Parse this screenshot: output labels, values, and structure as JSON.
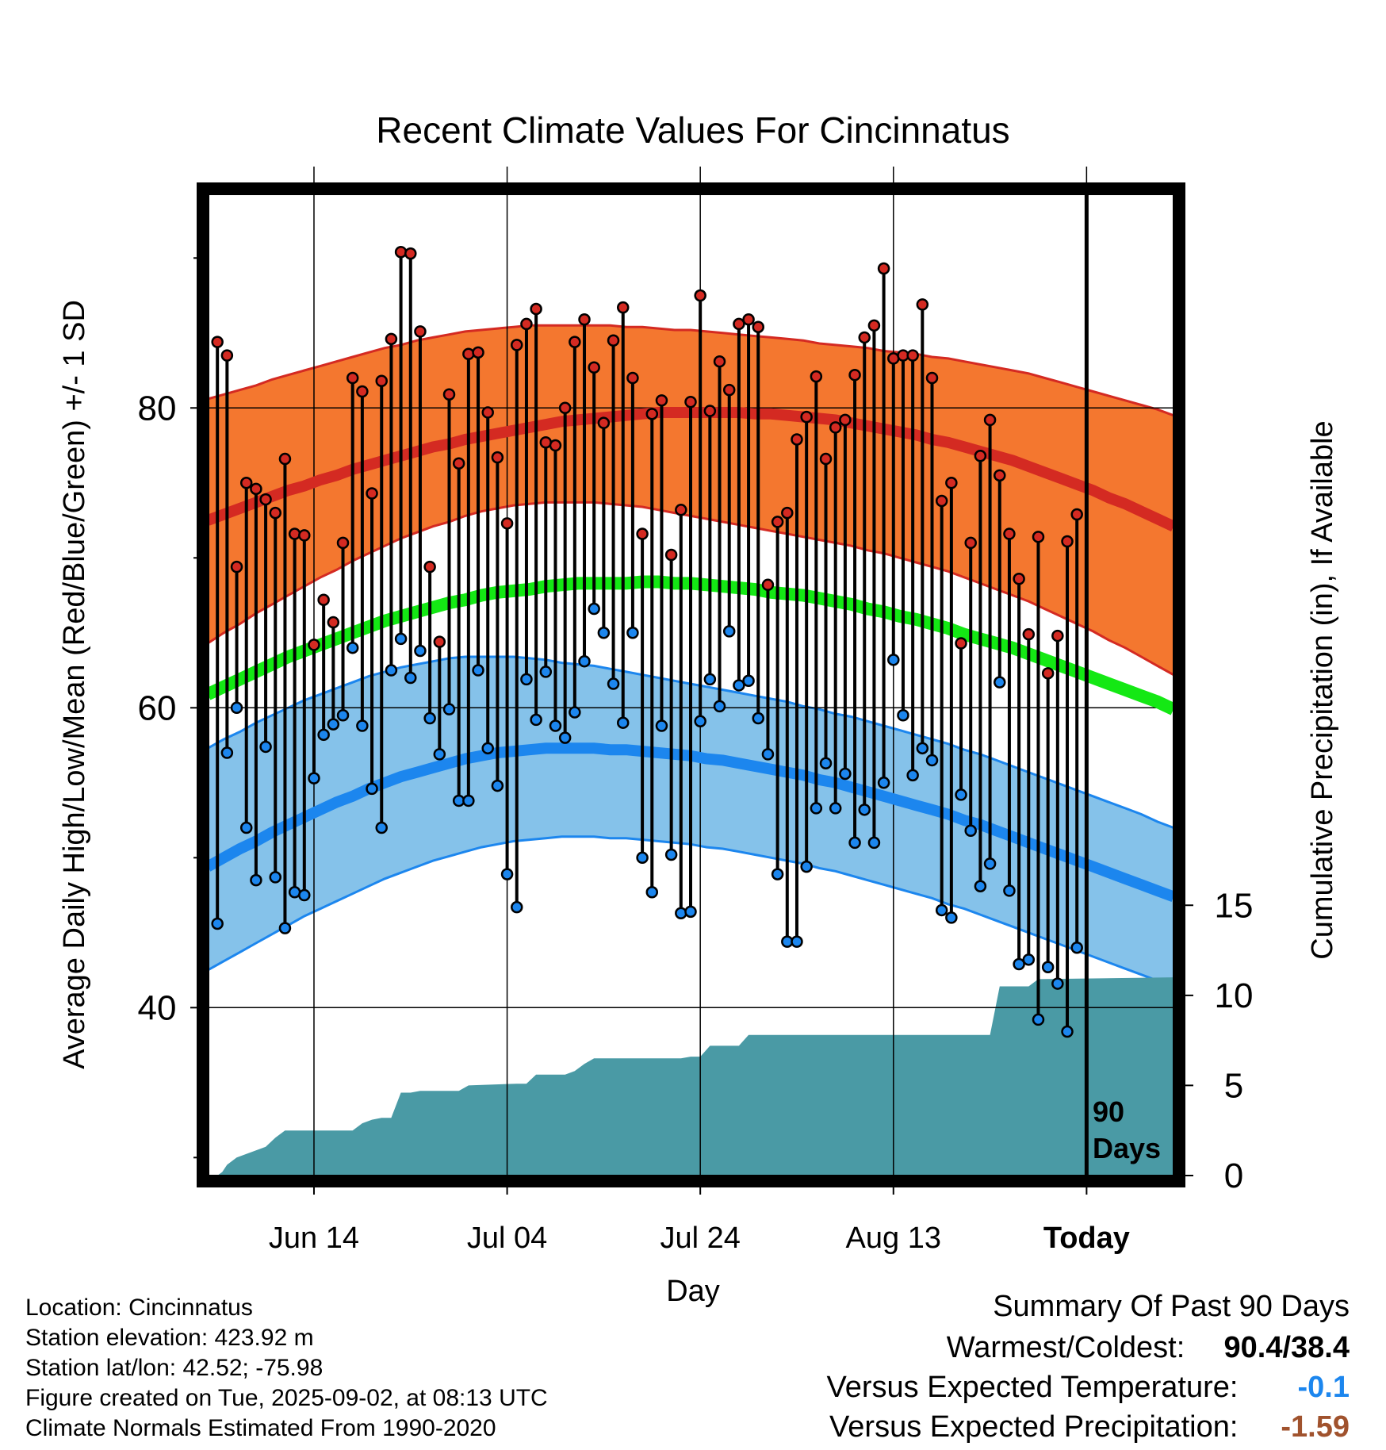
{
  "chart_data": {
    "type": "line",
    "title": "Recent Climate Values For Cincinnatus",
    "xlabel": "Day",
    "ylabel_left": "Average Daily High/Low/Mean (Red/Blue/Green) +/- 1 SD",
    "ylabel_right": "Cumulative Precipitation (in), If Available",
    "x_tick_labels": [
      "Jun 14",
      "Jul 04",
      "Jul 24",
      "Aug 13",
      "Today"
    ],
    "x_tick_days": [
      10,
      30,
      50,
      70,
      90
    ],
    "x_range_days": [
      -1,
      99
    ],
    "y_left_ticks": [
      40,
      60,
      80
    ],
    "y_left_range": [
      28.8,
      94.3
    ],
    "y_right_ticks": [
      0,
      5,
      10,
      15
    ],
    "y_right_range": [
      0,
      54.5
    ],
    "grid": true,
    "today_marker_label": [
      "90",
      "Days"
    ],
    "normals": {
      "mean_high": [
        72.5,
        72.9,
        73.3,
        73.7,
        74.1,
        74.5,
        74.8,
        75.2,
        75.5,
        75.9,
        76.2,
        76.5,
        76.8,
        77.1,
        77.4,
        77.6,
        77.9,
        78.1,
        78.3,
        78.5,
        78.7,
        78.9,
        79.1,
        79.2,
        79.3,
        79.4,
        79.5,
        79.6,
        79.7,
        79.7,
        79.7,
        79.7,
        79.7,
        79.7,
        79.6,
        79.6,
        79.5,
        79.4,
        79.3,
        79.2,
        79.0,
        78.8,
        78.6,
        78.4,
        78.2,
        77.9,
        77.7,
        77.4,
        77.1,
        76.8,
        76.5,
        76.1,
        75.7,
        75.3,
        74.9,
        74.5,
        74.0,
        73.6,
        73.1,
        72.6,
        72.1
      ],
      "high_sd_upper": [
        80.6,
        80.9,
        81.2,
        81.5,
        81.9,
        82.2,
        82.5,
        82.8,
        83.1,
        83.4,
        83.7,
        84.0,
        84.2,
        84.5,
        84.7,
        84.9,
        85.1,
        85.2,
        85.3,
        85.4,
        85.5,
        85.5,
        85.5,
        85.5,
        85.5,
        85.5,
        85.4,
        85.4,
        85.3,
        85.2,
        85.2,
        85.1,
        85.0,
        84.9,
        84.8,
        84.7,
        84.6,
        84.5,
        84.3,
        84.2,
        84.1,
        84.0,
        83.8,
        83.7,
        83.6,
        83.4,
        83.3,
        83.1,
        82.9,
        82.7,
        82.5,
        82.3,
        82.0,
        81.7,
        81.4,
        81.1,
        80.8,
        80.5,
        80.2,
        79.9,
        79.5
      ],
      "high_sd_lower": [
        64.3,
        65.0,
        65.6,
        66.3,
        66.9,
        67.5,
        68.1,
        68.7,
        69.2,
        69.8,
        70.3,
        70.8,
        71.3,
        71.7,
        72.1,
        72.4,
        72.8,
        73.1,
        73.3,
        73.5,
        73.6,
        73.7,
        73.7,
        73.7,
        73.7,
        73.6,
        73.5,
        73.4,
        73.2,
        73.0,
        72.8,
        72.6,
        72.4,
        72.2,
        72.0,
        71.8,
        71.6,
        71.4,
        71.2,
        71.0,
        70.8,
        70.5,
        70.3,
        70.0,
        69.7,
        69.4,
        69.1,
        68.7,
        68.3,
        67.9,
        67.5,
        67.1,
        66.6,
        66.1,
        65.6,
        65.1,
        64.5,
        64.0,
        63.4,
        62.8,
        62.2
      ],
      "mean_low": [
        49.4,
        50.0,
        50.6,
        51.1,
        51.7,
        52.2,
        52.7,
        53.2,
        53.7,
        54.1,
        54.6,
        55.0,
        55.4,
        55.7,
        56.0,
        56.3,
        56.6,
        56.8,
        57.0,
        57.1,
        57.2,
        57.3,
        57.3,
        57.3,
        57.3,
        57.2,
        57.2,
        57.1,
        57.0,
        56.9,
        56.8,
        56.6,
        56.5,
        56.3,
        56.1,
        55.9,
        55.7,
        55.5,
        55.2,
        55.0,
        54.7,
        54.4,
        54.1,
        53.8,
        53.5,
        53.2,
        52.9,
        52.5,
        52.2,
        51.8,
        51.4,
        51.0,
        50.6,
        50.2,
        49.8,
        49.4,
        49.0,
        48.6,
        48.2,
        47.8,
        47.4
      ],
      "low_sd_upper": [
        57.3,
        57.9,
        58.4,
        59.0,
        59.5,
        60.0,
        60.5,
        60.9,
        61.3,
        61.7,
        62.1,
        62.4,
        62.7,
        62.9,
        63.1,
        63.3,
        63.4,
        63.4,
        63.4,
        63.4,
        63.3,
        63.2,
        63.0,
        62.9,
        62.8,
        62.6,
        62.4,
        62.2,
        62.0,
        61.8,
        61.6,
        61.4,
        61.2,
        61.0,
        60.8,
        60.6,
        60.4,
        60.1,
        59.9,
        59.6,
        59.4,
        59.1,
        58.8,
        58.5,
        58.2,
        57.9,
        57.6,
        57.2,
        56.9,
        56.5,
        56.1,
        55.7,
        55.3,
        54.9,
        54.5,
        54.1,
        53.7,
        53.3,
        52.9,
        52.4,
        52.0
      ],
      "low_sd_lower": [
        42.5,
        43.1,
        43.7,
        44.3,
        44.9,
        45.5,
        46.1,
        46.6,
        47.1,
        47.6,
        48.1,
        48.6,
        49.0,
        49.4,
        49.8,
        50.1,
        50.4,
        50.7,
        50.9,
        51.1,
        51.2,
        51.3,
        51.4,
        51.4,
        51.4,
        51.3,
        51.3,
        51.2,
        51.1,
        51.0,
        50.9,
        50.7,
        50.6,
        50.4,
        50.2,
        50.0,
        49.8,
        49.6,
        49.3,
        49.1,
        48.8,
        48.5,
        48.2,
        47.9,
        47.6,
        47.3,
        46.9,
        46.6,
        46.2,
        45.8,
        45.4,
        45.0,
        44.6,
        44.2,
        43.8,
        43.4,
        43.0,
        42.6,
        42.2,
        41.8,
        41.4
      ],
      "mean_avg": [
        60.9,
        61.4,
        61.9,
        62.4,
        62.9,
        63.4,
        63.8,
        64.2,
        64.6,
        65.0,
        65.4,
        65.8,
        66.1,
        66.4,
        66.7,
        67.0,
        67.2,
        67.5,
        67.7,
        67.8,
        67.9,
        68.1,
        68.2,
        68.3,
        68.3,
        68.3,
        68.3,
        68.4,
        68.4,
        68.3,
        68.3,
        68.2,
        68.1,
        68.0,
        67.9,
        67.7,
        67.6,
        67.5,
        67.3,
        67.1,
        66.9,
        66.6,
        66.4,
        66.1,
        65.9,
        65.6,
        65.3,
        64.9,
        64.6,
        64.3,
        64.0,
        63.6,
        63.2,
        62.8,
        62.4,
        62.0,
        61.6,
        61.2,
        60.8,
        60.4,
        59.9
      ]
    },
    "observed_high": [
      84.4,
      83.5,
      69.4,
      75.0,
      74.6,
      73.9,
      73.0,
      76.6,
      71.6,
      71.5,
      64.2,
      67.2,
      65.7,
      71.0,
      82.0,
      81.1,
      74.3,
      81.8,
      84.6,
      90.4,
      90.3,
      85.1,
      69.4,
      64.4,
      80.9,
      76.3,
      83.6,
      83.7,
      79.7,
      76.7,
      72.3,
      84.2,
      85.6,
      86.6,
      77.7,
      77.5,
      80.0,
      84.4,
      85.9,
      82.7,
      79.0,
      84.5,
      86.7,
      82.0,
      71.6,
      79.6,
      80.5,
      70.2,
      73.2,
      80.4,
      87.5,
      79.8,
      83.1,
      81.2,
      85.6,
      85.9,
      85.4,
      68.2,
      72.4,
      73.0,
      77.9,
      79.4,
      82.1,
      76.6,
      78.7,
      79.2,
      82.2,
      84.7,
      85.5,
      89.3,
      83.3,
      83.5,
      83.5,
      86.9,
      82.0,
      73.8,
      75.0,
      64.3,
      71.0,
      76.8,
      79.2,
      75.5,
      71.6,
      68.6,
      64.9,
      71.4,
      62.3,
      64.8,
      71.1,
      72.9
    ],
    "observed_low": [
      45.6,
      57.0,
      60.0,
      52.0,
      48.5,
      57.4,
      48.7,
      45.3,
      47.7,
      47.5,
      55.3,
      58.2,
      58.9,
      59.5,
      64.0,
      58.8,
      54.6,
      52.0,
      62.5,
      64.6,
      62.0,
      63.8,
      59.3,
      56.9,
      59.9,
      53.8,
      53.8,
      62.5,
      57.3,
      54.8,
      48.9,
      46.7,
      61.9,
      59.2,
      62.4,
      58.8,
      58.0,
      59.7,
      63.1,
      66.6,
      65.0,
      61.6,
      59.0,
      65.0,
      50.0,
      47.7,
      58.8,
      50.2,
      46.3,
      46.4,
      59.1,
      61.9,
      60.1,
      65.1,
      61.5,
      61.8,
      59.3,
      56.9,
      48.9,
      44.4,
      44.4,
      49.4,
      53.3,
      56.3,
      53.3,
      55.6,
      51.0,
      53.2,
      51.0,
      55.0,
      63.2,
      59.5,
      55.5,
      57.3,
      56.5,
      46.5,
      46.0,
      54.2,
      51.8,
      48.1,
      49.6,
      61.7,
      47.8,
      42.9,
      43.2,
      39.2,
      42.7,
      41.6,
      38.4,
      44.0
    ],
    "cumulative_precip_steps": [
      [
        0.0,
        0.0
      ],
      [
        0.5,
        0.2
      ],
      [
        1.0,
        0.6
      ],
      [
        2.0,
        1.0
      ],
      [
        3.0,
        1.2
      ],
      [
        4.0,
        1.4
      ],
      [
        5.0,
        1.6
      ],
      [
        6.0,
        2.1
      ],
      [
        7.0,
        2.5
      ],
      [
        8.0,
        2.5
      ],
      [
        13.0,
        2.5
      ],
      [
        14.0,
        2.5
      ],
      [
        15.0,
        2.9
      ],
      [
        16.0,
        3.1
      ],
      [
        17.0,
        3.2
      ],
      [
        18.0,
        3.2
      ],
      [
        19.0,
        4.6
      ],
      [
        20.0,
        4.6
      ],
      [
        21.0,
        4.7
      ],
      [
        25.0,
        4.7
      ],
      [
        26.0,
        5.0
      ],
      [
        31.0,
        5.1
      ],
      [
        32.0,
        5.1
      ],
      [
        33.0,
        5.6
      ],
      [
        36.0,
        5.6
      ],
      [
        37.0,
        5.8
      ],
      [
        38.0,
        6.2
      ],
      [
        39.0,
        6.5
      ],
      [
        48.0,
        6.5
      ],
      [
        49.0,
        6.6
      ],
      [
        50.0,
        6.6
      ],
      [
        51.0,
        7.2
      ],
      [
        54.0,
        7.2
      ],
      [
        55.0,
        7.8
      ],
      [
        80.0,
        7.8
      ],
      [
        81.0,
        10.5
      ],
      [
        84.0,
        10.5
      ],
      [
        85.0,
        10.9
      ],
      [
        99.0,
        11.0
      ]
    ]
  },
  "footer": {
    "location": "Location: Cincinnatus",
    "elevation": "Station elevation: 423.92 m",
    "latlon": "Station lat/lon: 42.52; -75.98",
    "created": "Figure created on Tue, 2025-09-02, at 08:13 UTC",
    "normals_period": "Climate Normals Estimated From 1990-2020"
  },
  "summary": {
    "title": "Summary Of Past 90 Days",
    "warm_cold_label": "Warmest/Coldest:",
    "warm_cold_value": "90.4/38.4",
    "temp_label": "Versus Expected Temperature:",
    "temp_value": "-0.1",
    "precip_label": "Versus Expected Precipitation:",
    "precip_value": "-1.59"
  },
  "colors": {
    "high_band": "#f4772f",
    "high_line": "#d42a22",
    "mean_line": "#14e814",
    "low_band": "#85c2ea",
    "low_line": "#1c86ee",
    "precip_fill": "#4a9aa5",
    "high_dot": "#d42a22",
    "low_dot": "#1c86ee",
    "temp_value_color": "#1c86ee",
    "precip_value_color": "#a0522d"
  }
}
